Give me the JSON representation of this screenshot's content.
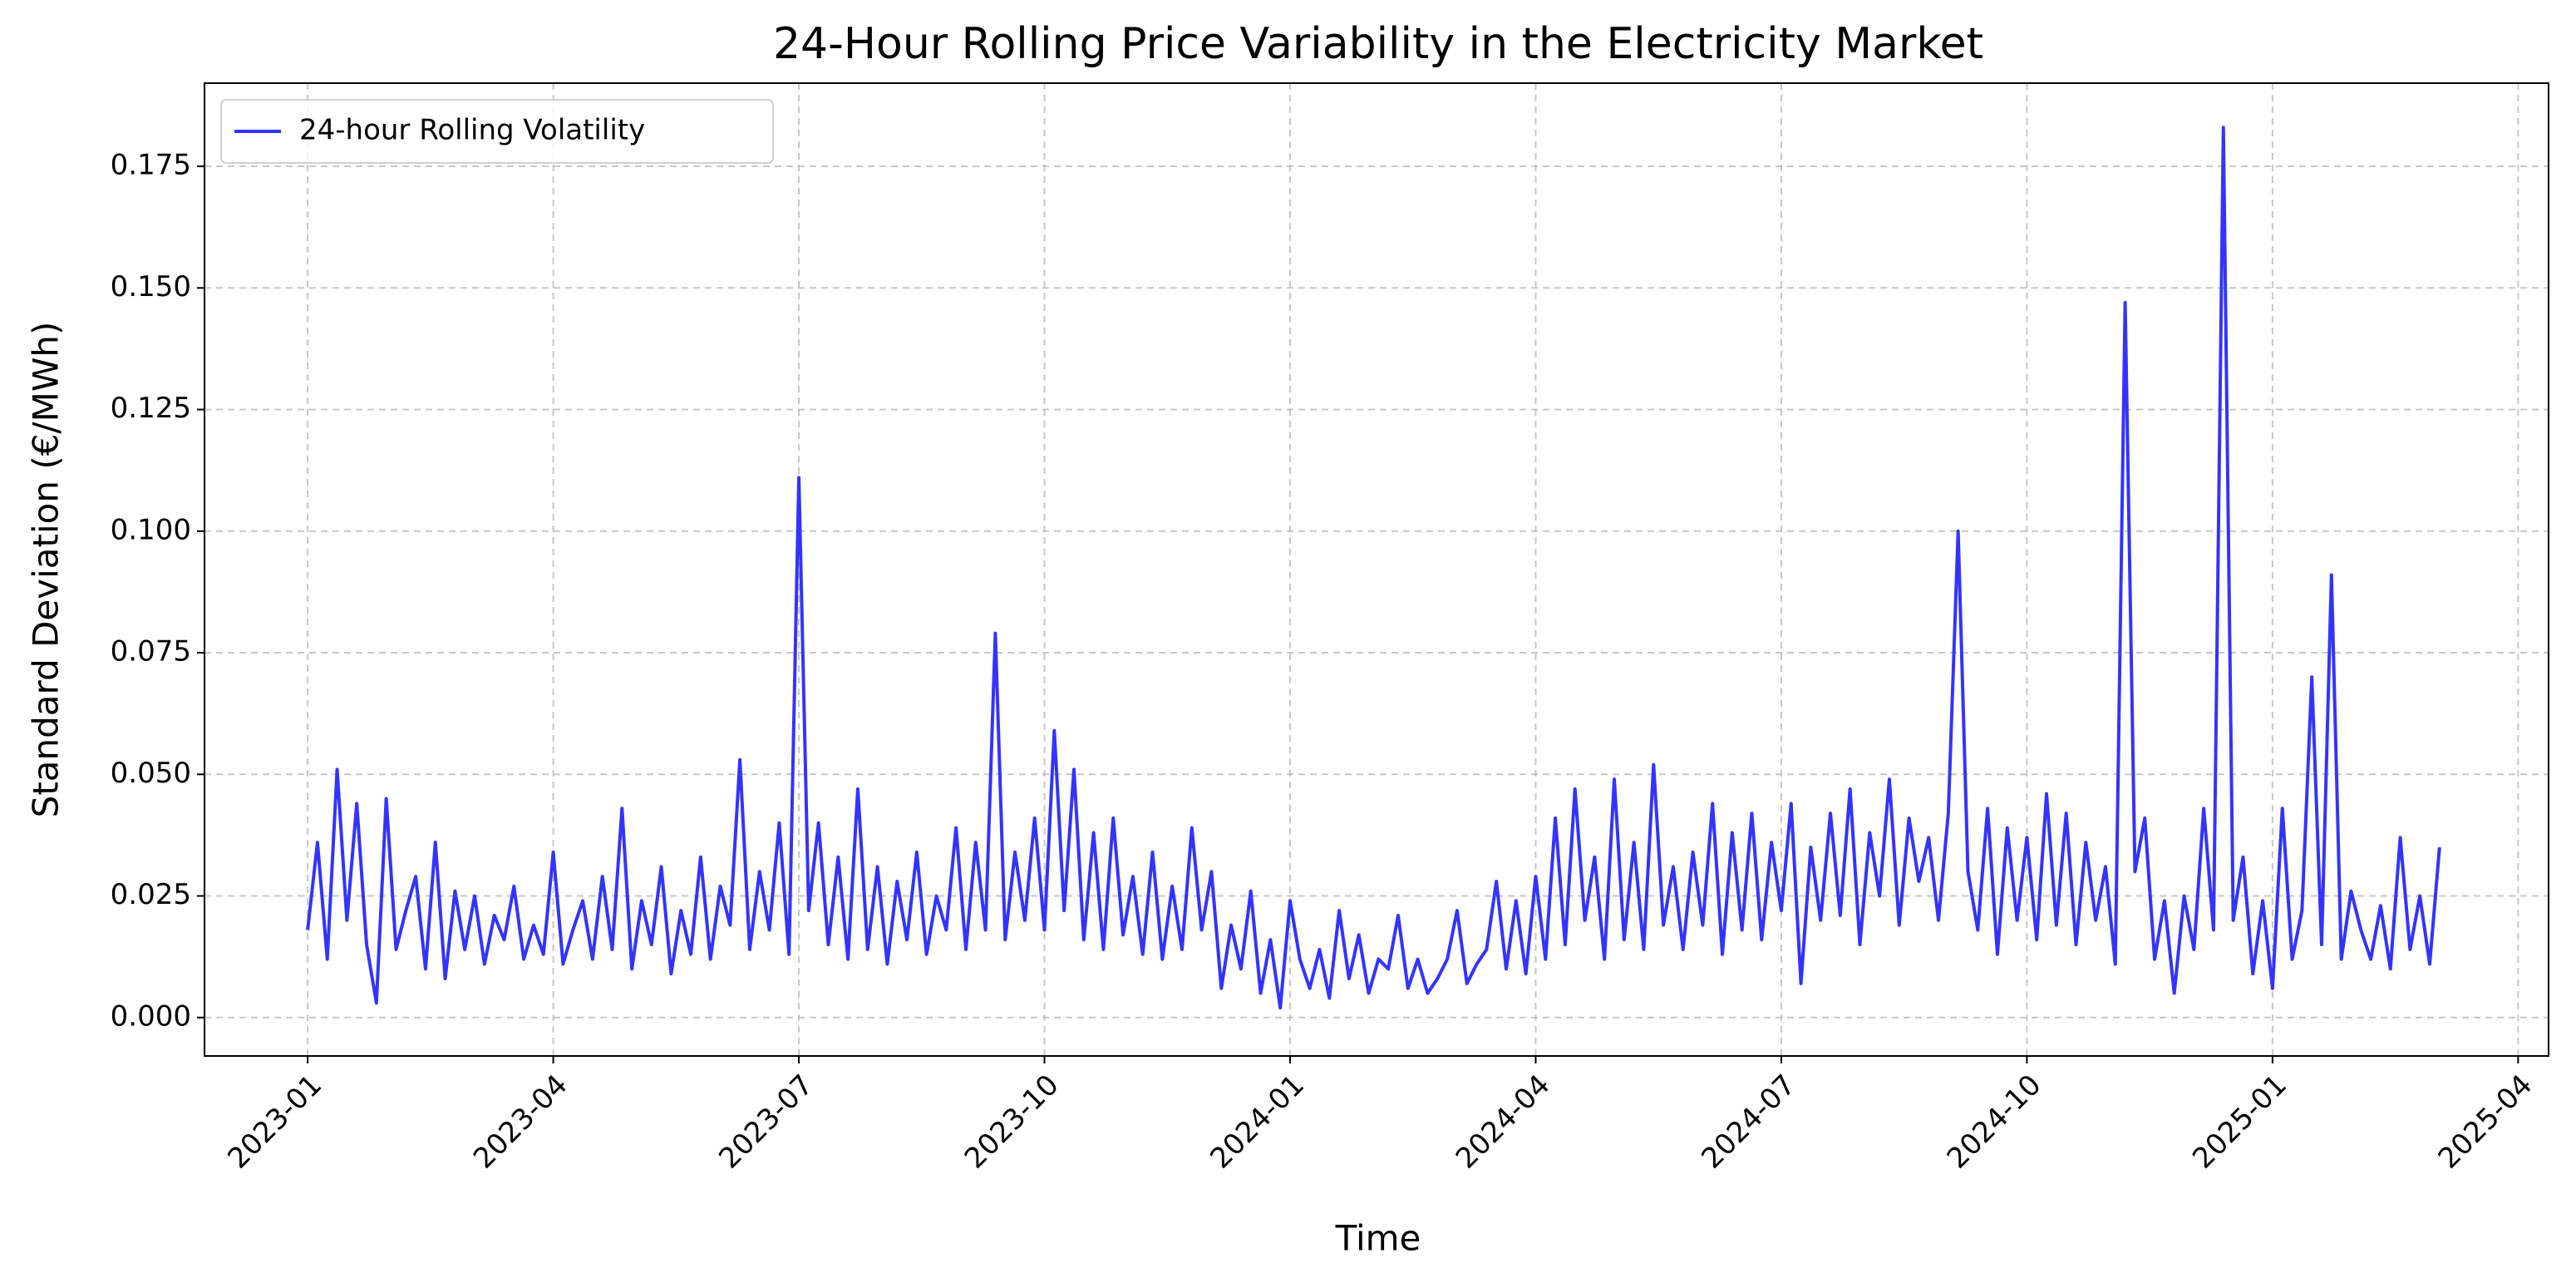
{
  "chart_data": {
    "type": "line",
    "title": "24-Hour Rolling Price Variability in the Electricity Market",
    "xlabel": "Time",
    "ylabel": "Standard Deviation (€/MWh)",
    "grid": true,
    "legend": "upper left",
    "xlim": [
      2022.895,
      2025.281
    ],
    "xticks": [
      {
        "value": 2023,
        "label": "2023-01"
      },
      {
        "value": 2023.25,
        "label": "2023-04"
      },
      {
        "value": 2023.5,
        "label": "2023-07"
      },
      {
        "value": 2023.75,
        "label": "2023-10"
      },
      {
        "value": 2024,
        "label": "2024-01"
      },
      {
        "value": 2024.25,
        "label": "2024-04"
      },
      {
        "value": 2024.5,
        "label": "2024-07"
      },
      {
        "value": 2024.75,
        "label": "2024-10"
      },
      {
        "value": 2025,
        "label": "2025-01"
      },
      {
        "value": 2025.25,
        "label": "2025-04"
      }
    ],
    "ylim": [
      -0.0079,
      0.1921
    ],
    "yticks": [
      {
        "value": 0,
        "label": "0.000"
      },
      0.025,
      {
        "value": 0.05,
        "label": "0.050"
      },
      0.075,
      {
        "value": 0.1,
        "label": "0.100"
      },
      0.125,
      {
        "value": 0.15,
        "label": "0.150"
      },
      0.175
    ],
    "x": [
      2023.0,
      2023.01,
      2023.02,
      2023.03,
      2023.04,
      2023.05,
      2023.06,
      2023.07,
      2023.08,
      2023.09,
      2023.1,
      2023.11,
      2023.12,
      2023.13,
      2023.14,
      2023.15,
      2023.16,
      2023.17,
      2023.18,
      2023.19,
      2023.2,
      2023.21,
      2023.22,
      2023.23,
      2023.24,
      2023.25,
      2023.26,
      2023.27,
      2023.28,
      2023.29,
      2023.3,
      2023.31,
      2023.32,
      2023.33,
      2023.34,
      2023.35,
      2023.36,
      2023.37,
      2023.38,
      2023.39,
      2023.4,
      2023.41,
      2023.42,
      2023.43,
      2023.44,
      2023.45,
      2023.46,
      2023.47,
      2023.48,
      2023.49,
      2023.5,
      2023.51,
      2023.52,
      2023.53,
      2023.54,
      2023.55,
      2023.56,
      2023.57,
      2023.58,
      2023.59,
      2023.6,
      2023.61,
      2023.62,
      2023.63,
      2023.64,
      2023.65,
      2023.66,
      2023.67,
      2023.68,
      2023.69,
      2023.7,
      2023.71,
      2023.72,
      2023.73,
      2023.74,
      2023.75,
      2023.76,
      2023.77,
      2023.78,
      2023.79,
      2023.8,
      2023.81,
      2023.82,
      2023.83,
      2023.84,
      2023.85,
      2023.86,
      2023.87,
      2023.88,
      2023.89,
      2023.9,
      2023.91,
      2023.92,
      2023.93,
      2023.94,
      2023.95,
      2023.96,
      2023.97,
      2023.98,
      2023.99,
      2024.0,
      2024.01,
      2024.02,
      2024.03,
      2024.04,
      2024.05,
      2024.06,
      2024.07,
      2024.08,
      2024.09,
      2024.1,
      2024.11,
      2024.12,
      2024.13,
      2024.14,
      2024.15,
      2024.16,
      2024.17,
      2024.18,
      2024.19,
      2024.2,
      2024.21,
      2024.22,
      2024.23,
      2024.24,
      2024.25,
      2024.26,
      2024.27,
      2024.28,
      2024.29,
      2024.3,
      2024.31,
      2024.32,
      2024.33,
      2024.34,
      2024.35,
      2024.36,
      2024.37,
      2024.38,
      2024.39,
      2024.4,
      2024.41,
      2024.42,
      2024.43,
      2024.44,
      2024.45,
      2024.46,
      2024.47,
      2024.48,
      2024.49,
      2024.5,
      2024.51,
      2024.52,
      2024.53,
      2024.54,
      2024.55,
      2024.56,
      2024.57,
      2024.58,
      2024.59,
      2024.6,
      2024.61,
      2024.62,
      2024.63,
      2024.64,
      2024.65,
      2024.66,
      2024.67,
      2024.68,
      2024.69,
      2024.7,
      2024.71,
      2024.72,
      2024.73,
      2024.74,
      2024.75,
      2024.76,
      2024.77,
      2024.78,
      2024.79,
      2024.8,
      2024.81,
      2024.82,
      2024.83,
      2024.84,
      2024.85,
      2024.86,
      2024.87,
      2024.88,
      2024.89,
      2024.9,
      2024.91,
      2024.92,
      2024.93,
      2024.94,
      2024.95,
      2024.96,
      2024.97,
      2024.98,
      2024.99,
      2025.0,
      2025.01,
      2025.02,
      2025.03,
      2025.04,
      2025.05,
      2025.06,
      2025.07,
      2025.08,
      2025.09,
      2025.1,
      2025.11,
      2025.12,
      2025.13,
      2025.14,
      2025.15,
      2025.16,
      2025.17
    ],
    "series": [
      {
        "name": "24-hour Rolling Volatility",
        "color": "#3333ff",
        "values": [
          0.018,
          0.036,
          0.012,
          0.051,
          0.02,
          0.044,
          0.015,
          0.003,
          0.045,
          0.014,
          0.022,
          0.029,
          0.01,
          0.036,
          0.008,
          0.026,
          0.014,
          0.025,
          0.011,
          0.021,
          0.016,
          0.027,
          0.012,
          0.019,
          0.013,
          0.034,
          0.011,
          0.018,
          0.024,
          0.012,
          0.029,
          0.014,
          0.043,
          0.01,
          0.024,
          0.015,
          0.031,
          0.009,
          0.022,
          0.013,
          0.033,
          0.012,
          0.027,
          0.019,
          0.053,
          0.014,
          0.03,
          0.018,
          0.04,
          0.013,
          0.111,
          0.022,
          0.04,
          0.015,
          0.033,
          0.012,
          0.047,
          0.014,
          0.031,
          0.011,
          0.028,
          0.016,
          0.034,
          0.013,
          0.025,
          0.018,
          0.039,
          0.014,
          0.036,
          0.018,
          0.079,
          0.016,
          0.034,
          0.02,
          0.041,
          0.018,
          0.059,
          0.022,
          0.051,
          0.016,
          0.038,
          0.014,
          0.041,
          0.017,
          0.029,
          0.013,
          0.034,
          0.012,
          0.027,
          0.014,
          0.039,
          0.018,
          0.03,
          0.006,
          0.019,
          0.01,
          0.026,
          0.005,
          0.016,
          0.002,
          0.024,
          0.012,
          0.006,
          0.014,
          0.004,
          0.022,
          0.008,
          0.017,
          0.005,
          0.012,
          0.01,
          0.021,
          0.006,
          0.012,
          0.005,
          0.008,
          0.012,
          0.022,
          0.007,
          0.011,
          0.014,
          0.028,
          0.01,
          0.024,
          0.009,
          0.029,
          0.012,
          0.041,
          0.015,
          0.047,
          0.02,
          0.033,
          0.012,
          0.049,
          0.016,
          0.036,
          0.014,
          0.052,
          0.019,
          0.031,
          0.014,
          0.034,
          0.019,
          0.044,
          0.013,
          0.038,
          0.018,
          0.042,
          0.016,
          0.036,
          0.022,
          0.044,
          0.007,
          0.035,
          0.02,
          0.042,
          0.021,
          0.047,
          0.015,
          0.038,
          0.025,
          0.049,
          0.019,
          0.041,
          0.028,
          0.037,
          0.02,
          0.042,
          0.1,
          0.03,
          0.018,
          0.043,
          0.013,
          0.039,
          0.02,
          0.037,
          0.016,
          0.046,
          0.019,
          0.042,
          0.015,
          0.036,
          0.02,
          0.031,
          0.011,
          0.147,
          0.03,
          0.041,
          0.012,
          0.024,
          0.005,
          0.025,
          0.014,
          0.043,
          0.018,
          0.183,
          0.02,
          0.033,
          0.009,
          0.024,
          0.006,
          0.043,
          0.012,
          0.022,
          0.07,
          0.015,
          0.091,
          0.012,
          0.026,
          0.018,
          0.012,
          0.023,
          0.01,
          0.037,
          0.014,
          0.025,
          0.011,
          0.035
        ]
      }
    ]
  }
}
